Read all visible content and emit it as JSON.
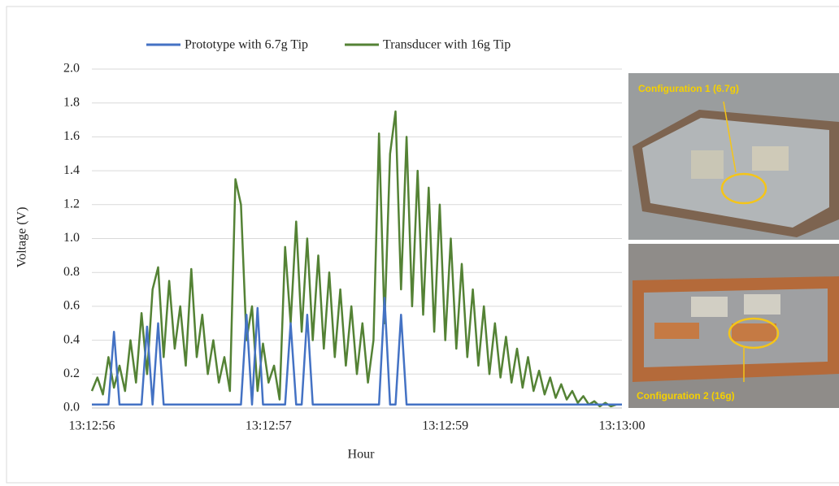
{
  "chart_data": {
    "type": "line",
    "x_label": "Hour",
    "y_label": "Voltage (V)",
    "legend": "top",
    "grid": true,
    "categories": [
      "13:12:56",
      null,
      null,
      null,
      null,
      null,
      null,
      null,
      null,
      null,
      null,
      null,
      null,
      null,
      null,
      null,
      null,
      null,
      null,
      null,
      null,
      null,
      null,
      null,
      null,
      null,
      null,
      null,
      null,
      null,
      null,
      null,
      "13:12:57",
      null,
      null,
      null,
      null,
      null,
      null,
      null,
      null,
      null,
      null,
      null,
      null,
      null,
      null,
      null,
      null,
      null,
      null,
      null,
      null,
      null,
      null,
      null,
      null,
      null,
      null,
      null,
      null,
      null,
      null,
      null,
      "13:12:59",
      null,
      null,
      null,
      null,
      null,
      null,
      null,
      null,
      null,
      null,
      null,
      null,
      null,
      null,
      null,
      null,
      null,
      null,
      null,
      null,
      null,
      null,
      null,
      null,
      null,
      null,
      null,
      null,
      null,
      null,
      null,
      "13:13:00"
    ],
    "series": [
      {
        "name": "Prototype with 6.7g Tip",
        "color": "#4472c4",
        "values": [
          0.02,
          0.02,
          0.02,
          0.02,
          0.45,
          0.02,
          0.02,
          0.02,
          0.02,
          0.02,
          0.48,
          0.02,
          0.5,
          0.02,
          0.02,
          0.02,
          0.02,
          0.02,
          0.02,
          0.02,
          0.02,
          0.02,
          0.02,
          0.02,
          0.02,
          0.02,
          0.02,
          0.02,
          0.55,
          0.02,
          0.59,
          0.02,
          0.02,
          0.02,
          0.02,
          0.02,
          0.5,
          0.02,
          0.02,
          0.55,
          0.02,
          0.02,
          0.02,
          0.02,
          0.02,
          0.02,
          0.02,
          0.02,
          0.02,
          0.02,
          0.02,
          0.02,
          0.02,
          0.65,
          0.02,
          0.02,
          0.55,
          0.02,
          0.02,
          0.02,
          0.02,
          0.02,
          0.02,
          0.02,
          0.02,
          0.02,
          0.02,
          0.02,
          0.02,
          0.02,
          0.02,
          0.02,
          0.02,
          0.02,
          0.02,
          0.02,
          0.02,
          0.02,
          0.02,
          0.02,
          0.02,
          0.02,
          0.02,
          0.02,
          0.02,
          0.02,
          0.02,
          0.02,
          0.02,
          0.02,
          0.02,
          0.02,
          0.02,
          0.02,
          0.02,
          0.02,
          0.02
        ]
      },
      {
        "name": "Transducer with 16g Tip",
        "color": "#548235",
        "values": [
          0.1,
          0.18,
          0.08,
          0.3,
          0.12,
          0.25,
          0.1,
          0.4,
          0.15,
          0.56,
          0.2,
          0.7,
          0.83,
          0.3,
          0.75,
          0.35,
          0.6,
          0.25,
          0.82,
          0.3,
          0.55,
          0.2,
          0.4,
          0.15,
          0.3,
          0.1,
          1.35,
          1.2,
          0.4,
          0.6,
          0.1,
          0.38,
          0.15,
          0.25,
          0.05,
          0.95,
          0.5,
          1.1,
          0.45,
          1.0,
          0.4,
          0.9,
          0.35,
          0.8,
          0.3,
          0.7,
          0.25,
          0.6,
          0.2,
          0.5,
          0.15,
          0.4,
          1.62,
          0.5,
          1.5,
          1.75,
          0.7,
          1.6,
          0.6,
          1.4,
          0.55,
          1.3,
          0.45,
          1.2,
          0.4,
          1.0,
          0.35,
          0.85,
          0.3,
          0.7,
          0.25,
          0.6,
          0.2,
          0.5,
          0.18,
          0.42,
          0.15,
          0.35,
          0.12,
          0.3,
          0.1,
          0.22,
          0.08,
          0.18,
          0.06,
          0.14,
          0.05,
          0.1,
          0.03,
          0.07,
          0.02,
          0.04,
          0.01,
          0.03,
          0.01,
          0.02,
          0.02
        ]
      }
    ],
    "ylim": [
      0,
      2
    ],
    "yticks": [
      {
        "value": 0,
        "label": "0.0"
      },
      0.2,
      0.4,
      0.6,
      0.8,
      {
        "value": 1,
        "label": "1.0"
      },
      1.2,
      1.4,
      1.6,
      1.8,
      {
        "value": 2,
        "label": "2.0"
      }
    ],
    "annotations": [
      "Configuration  1 (6.7g)",
      "Configuration  2 (16g)"
    ]
  }
}
